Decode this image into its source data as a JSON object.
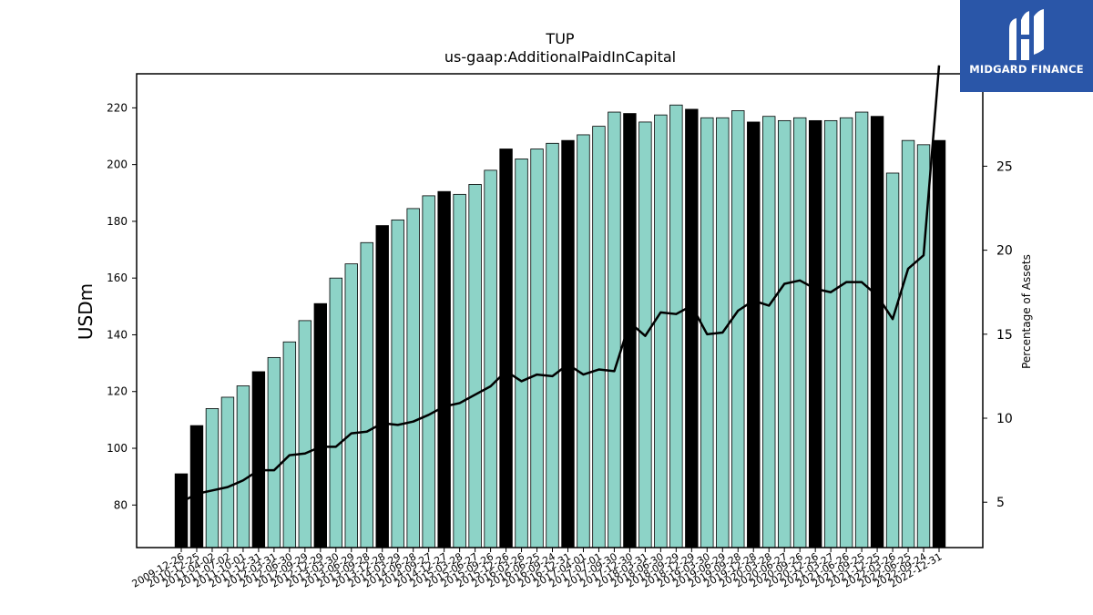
{
  "chart_data": {
    "type": "bar",
    "title": "TUP",
    "subtitle": "us-gaap:AdditionalPaidInCapital",
    "ylabel": "USDm",
    "y2label": "Percentage of Assets",
    "ylim": [
      65,
      232
    ],
    "y2lim": [
      2.3,
      30.5
    ],
    "yticks": [
      80,
      100,
      120,
      140,
      160,
      180,
      200,
      220
    ],
    "y2ticks": [
      5,
      10,
      15,
      20,
      25
    ],
    "xtick_labels": [
      "2009-12-26",
      "2010-12-25",
      "2011-04-02",
      "2011-07-02",
      "2011-10-01",
      "2011-12-31",
      "2012-03-31",
      "2012-06-30",
      "2012-09-29",
      "2012-12-29",
      "2013-03-30",
      "2013-06-29",
      "2013-09-28",
      "2013-12-28",
      "2014-03-29",
      "2014-06-28",
      "2014-09-27",
      "2014-12-27",
      "2015-03-28",
      "2015-06-27",
      "2015-09-26",
      "2015-12-26",
      "2016-03-26",
      "2016-06-25",
      "2016-09-24",
      "2016-12-31",
      "2017-04-01",
      "2017-07-01",
      "2017-09-30",
      "2017-12-30",
      "2018-03-31",
      "2018-06-30",
      "2018-09-29",
      "2018-12-29",
      "2019-03-30",
      "2019-06-29",
      "2019-09-28",
      "2019-12-28",
      "2020-03-28",
      "2020-06-27",
      "2020-09-26",
      "2020-12-26",
      "2021-03-27",
      "2021-06-26",
      "2021-09-25",
      "2021-12-25",
      "2022-03-26",
      "2022-06-25",
      "2022-09-24",
      "2022-12-31"
    ],
    "values": [
      91,
      108,
      114,
      118,
      122,
      127,
      132,
      137.5,
      145,
      151,
      160,
      165,
      172.5,
      178.5,
      180.5,
      184.5,
      189,
      190.5,
      189.5,
      193,
      198,
      205.5,
      202,
      205.5,
      207.5,
      208.5,
      210.5,
      213.5,
      218.5,
      218,
      215,
      217.5,
      221,
      219.5,
      216.5,
      216.5,
      219,
      215,
      217,
      215.5,
      216.5,
      215.5,
      215.5,
      216.5,
      218.5,
      217,
      197,
      208.5,
      207,
      208.5
    ],
    "highlight": [
      true,
      true,
      false,
      false,
      false,
      true,
      false,
      false,
      false,
      true,
      false,
      false,
      false,
      true,
      false,
      false,
      false,
      true,
      false,
      false,
      false,
      true,
      false,
      false,
      false,
      true,
      false,
      false,
      false,
      true,
      false,
      false,
      false,
      true,
      false,
      false,
      false,
      true,
      false,
      false,
      false,
      true,
      false,
      false,
      false,
      true,
      false,
      false,
      false,
      true
    ],
    "pct_assets": [
      5,
      5.5,
      5.7,
      5.9,
      6.3,
      6.9,
      6.9,
      7.8,
      7.9,
      8.3,
      8.3,
      9.1,
      9.2,
      9.7,
      9.6,
      9.8,
      10.2,
      10.7,
      10.9,
      11.4,
      11.9,
      12.8,
      12.2,
      12.6,
      12.5,
      13.2,
      12.6,
      12.9,
      12.8,
      15.7,
      14.9,
      16.3,
      16.2,
      16.7,
      15.0,
      15.1,
      16.4,
      17.0,
      16.7,
      18.0,
      18.2,
      17.7,
      17.5,
      18.1,
      18.1,
      17.3,
      15.9,
      18.9,
      19.7,
      31.0
    ],
    "colors": {
      "bar": "#8dd3c7",
      "highlight": "#000000",
      "line": "#000000"
    }
  },
  "logo": {
    "text": "MIDGARD FINANCE",
    "icon": "midgard-logo-icon",
    "color": "#2a56a8"
  }
}
